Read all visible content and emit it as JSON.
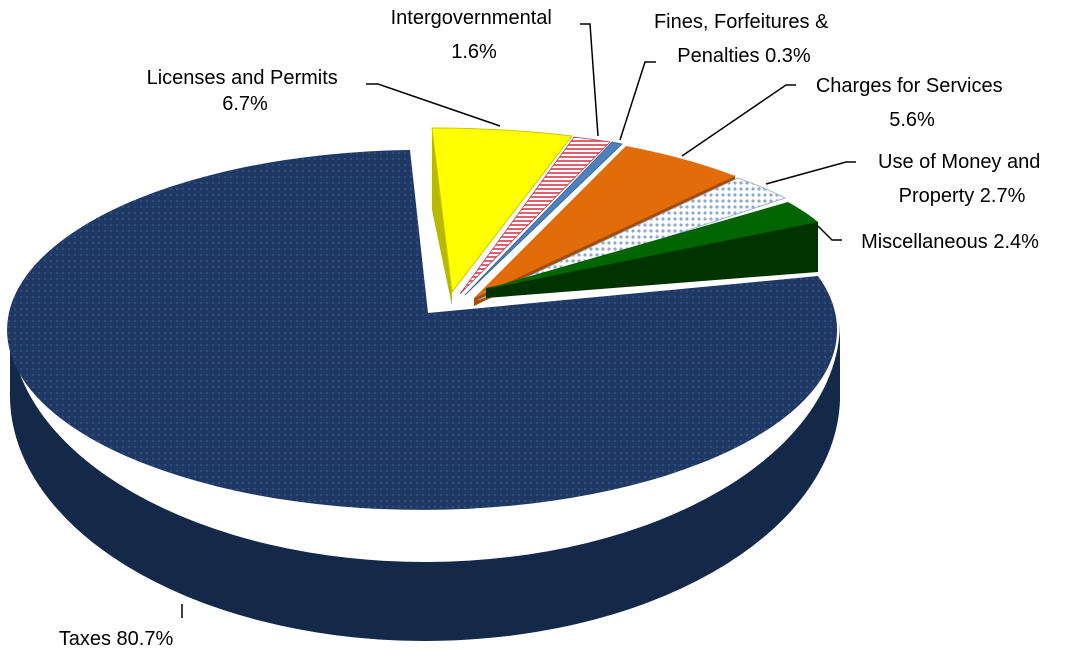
{
  "chart_data": {
    "type": "pie",
    "style": "3d-exploded",
    "title": "",
    "slices": [
      {
        "label": "Taxes",
        "value": 80.7,
        "label_text": "Taxes 80.7%",
        "color": "#1f3864",
        "pattern": "dots"
      },
      {
        "label": "Licenses and Permits",
        "value": 6.7,
        "label_text": [
          "Licenses and Permits",
          "6.7%"
        ],
        "color": "#ffff00",
        "pattern": "none"
      },
      {
        "label": "Intergovernmental",
        "value": 1.6,
        "label_text": [
          "Intergovernmental",
          "1.6%"
        ],
        "color": "#f2a0a0",
        "pattern": "stripes"
      },
      {
        "label": "Fines, Forfeitures & Penalties",
        "value": 0.3,
        "label_text": [
          "Fines, Forfeitures &",
          "Penalties 0.3%"
        ],
        "color": "#4f81bd",
        "pattern": "none"
      },
      {
        "label": "Charges for Services",
        "value": 5.6,
        "label_text": [
          "Charges for Services",
          "5.6%"
        ],
        "color": "#e36c0a",
        "pattern": "none"
      },
      {
        "label": "Use of Money and Property",
        "value": 2.7,
        "label_text": [
          "Use of Money and",
          "Property 2.7%"
        ],
        "color": "#dbe5f1",
        "pattern": "dots"
      },
      {
        "label": "Miscellaneous",
        "value": 2.4,
        "label_text": "Miscellaneous 2.4%",
        "color": "#006400",
        "pattern": "none"
      }
    ]
  }
}
